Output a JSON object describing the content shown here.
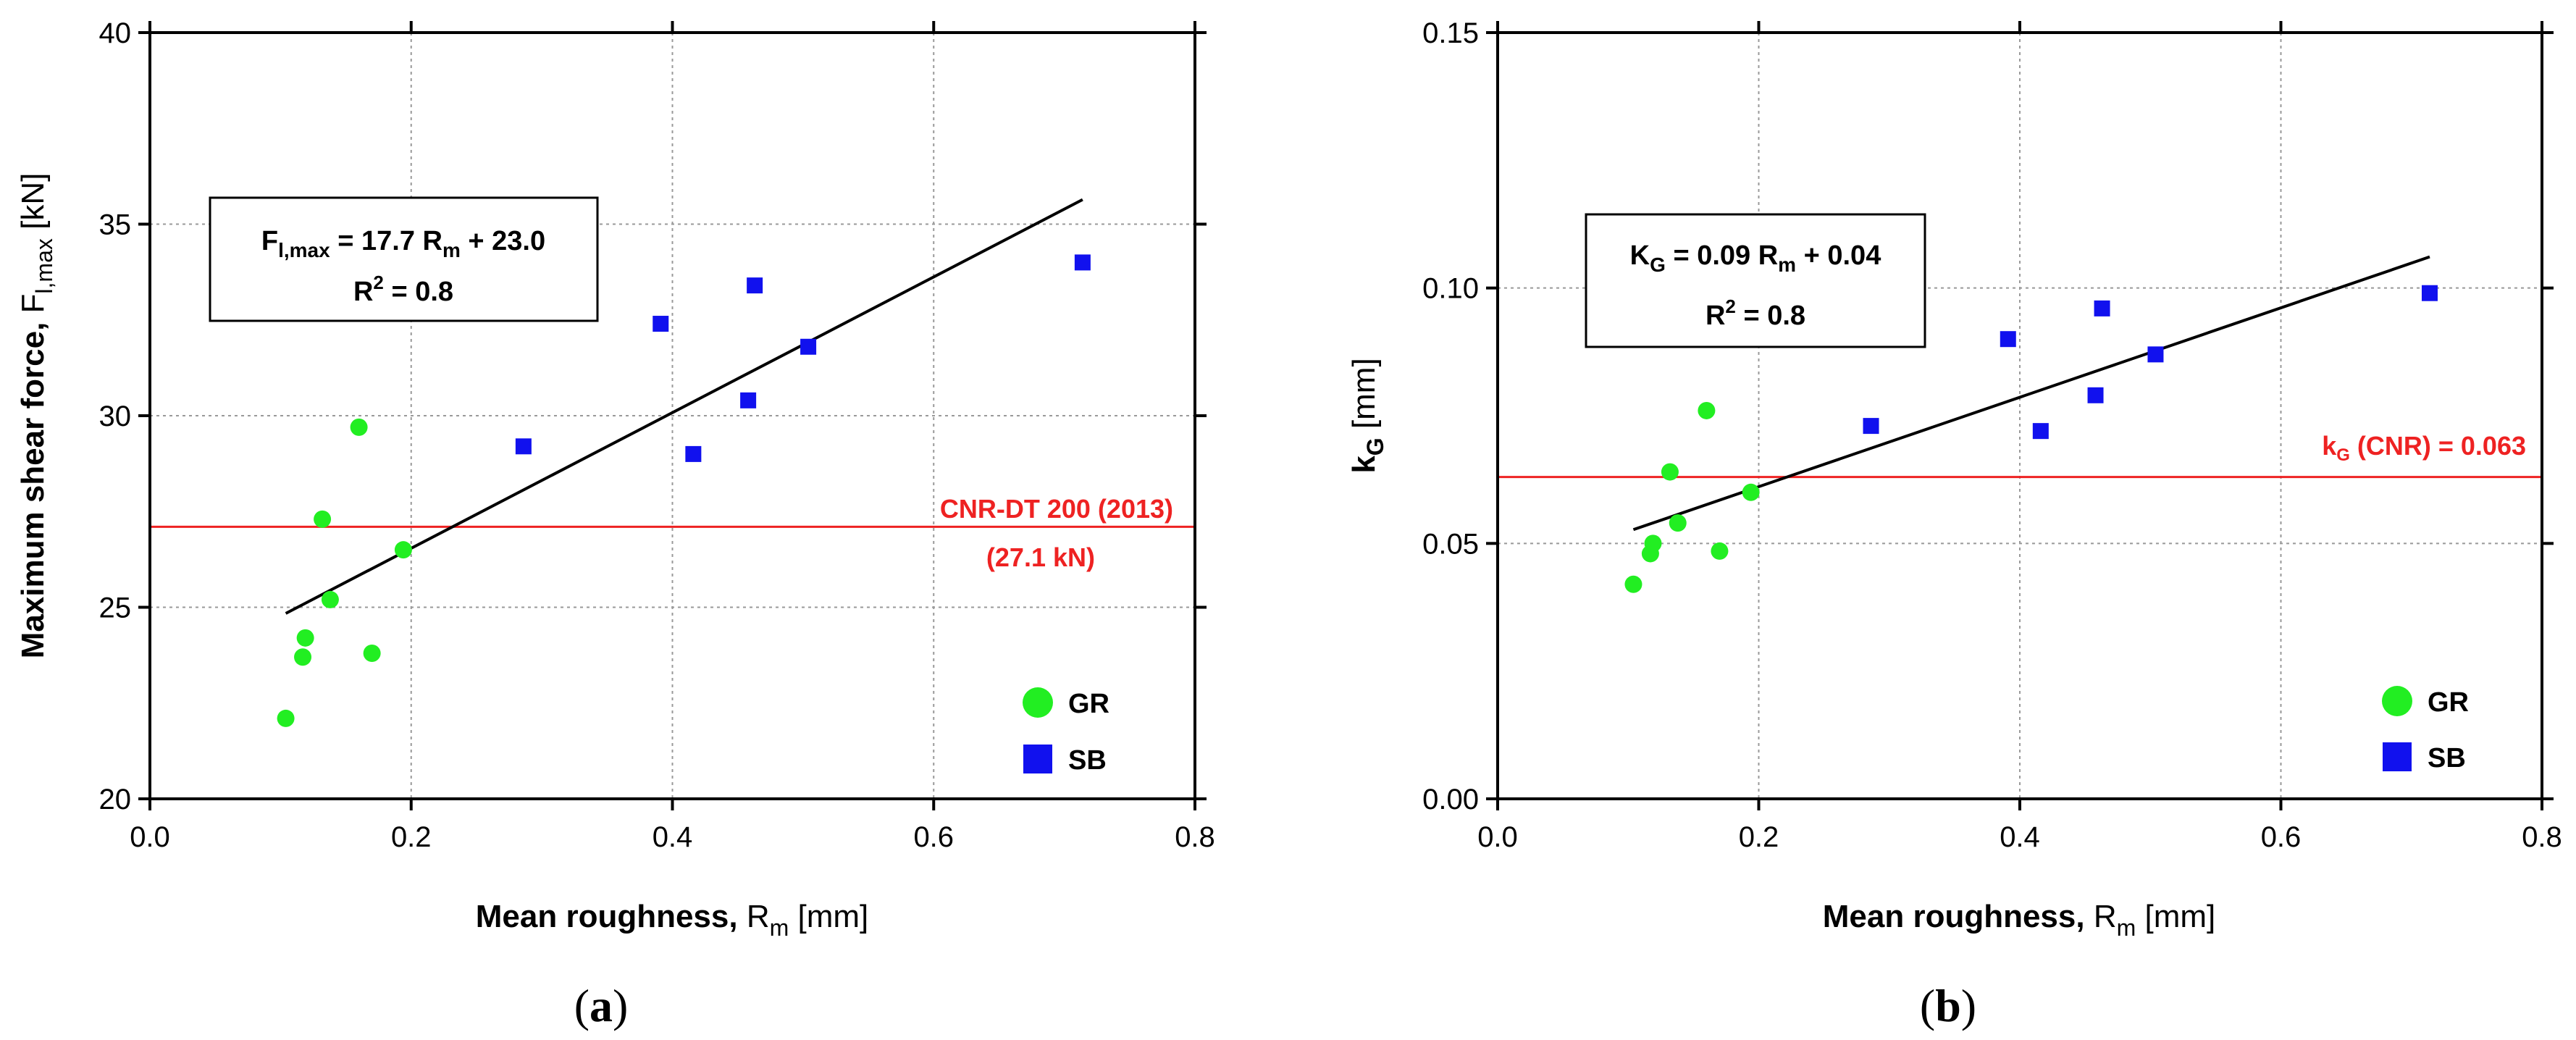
{
  "colors": {
    "gr": "#22ee22",
    "sb": "#1111ee",
    "ref": "#ee2222",
    "fit": "#000000",
    "grid": "#999999"
  },
  "chart_data": [
    {
      "type": "scatter",
      "panel_label": "(a)",
      "xlabel": "Mean roughness, R",
      "xlabel_sub": "m",
      "xlabel_unit": " [mm]",
      "ylabel": "Maximum shear force, F",
      "ylabel_sub": "l,max",
      "ylabel_unit": " [kN]",
      "xlim": [
        0.0,
        0.8
      ],
      "ylim": [
        20,
        40
      ],
      "xticks": [
        0.0,
        0.2,
        0.4,
        0.6,
        0.8
      ],
      "xtick_labels": [
        "0.0",
        "0.2",
        "0.4",
        "0.6",
        "0.8"
      ],
      "yticks": [
        20,
        25,
        30,
        35,
        40
      ],
      "ytick_labels": [
        "20",
        "25",
        "30",
        "35",
        "40"
      ],
      "grid": true,
      "series": [
        {
          "name": "GR",
          "marker": "circle",
          "color": "#22ee22",
          "x": [
            0.104,
            0.117,
            0.119,
            0.132,
            0.138,
            0.16,
            0.17,
            0.194
          ],
          "y": [
            22.1,
            23.7,
            24.2,
            27.3,
            25.2,
            29.7,
            23.8,
            26.5
          ]
        },
        {
          "name": "SB",
          "marker": "square",
          "color": "#1111ee",
          "x": [
            0.286,
            0.391,
            0.416,
            0.458,
            0.463,
            0.504,
            0.714
          ],
          "y": [
            29.2,
            32.4,
            29.0,
            30.4,
            33.4,
            31.8,
            34.0
          ]
        }
      ],
      "fit": {
        "x": [
          0.104,
          0.714
        ],
        "y": [
          24.84,
          35.64
        ]
      },
      "equation": {
        "line1": {
          "lhs": "F",
          "lhs_sub": "l,max",
          "mid": " = 17.7 R",
          "mid_sub": "m",
          "rhs": " + 23.0"
        },
        "line2": {
          "pre": "R",
          "sup": "2",
          "post": " = 0.8"
        }
      },
      "reference": {
        "value": 27.1,
        "label_line1": "CNR-DT 200 (2013)",
        "label_line2": "(27.1 kN)"
      },
      "legend": [
        "GR",
        "SB"
      ]
    },
    {
      "type": "scatter",
      "panel_label": "(b)",
      "xlabel": "Mean roughness, R",
      "xlabel_sub": "m",
      "xlabel_unit": " [mm]",
      "ylabel": "k",
      "ylabel_sub": "G",
      "ylabel_unit": " [mm]",
      "xlim": [
        0.0,
        0.8
      ],
      "ylim": [
        0.0,
        0.15
      ],
      "xticks": [
        0.0,
        0.2,
        0.4,
        0.6,
        0.8
      ],
      "xtick_labels": [
        "0.0",
        "0.2",
        "0.4",
        "0.6",
        "0.8"
      ],
      "yticks": [
        0.0,
        0.05,
        0.1,
        0.15
      ],
      "ytick_labels": [
        "0.00",
        "0.05",
        "0.10",
        "0.15"
      ],
      "grid": true,
      "series": [
        {
          "name": "GR",
          "marker": "circle",
          "color": "#22ee22",
          "x": [
            0.104,
            0.117,
            0.119,
            0.132,
            0.138,
            0.16,
            0.17,
            0.194
          ],
          "y": [
            0.042,
            0.048,
            0.05,
            0.064,
            0.054,
            0.076,
            0.0485,
            0.06
          ]
        },
        {
          "name": "SB",
          "marker": "square",
          "color": "#1111ee",
          "x": [
            0.286,
            0.391,
            0.416,
            0.458,
            0.463,
            0.504,
            0.714
          ],
          "y": [
            0.073,
            0.09,
            0.072,
            0.079,
            0.096,
            0.087,
            0.099
          ]
        }
      ],
      "fit": {
        "x": [
          0.104,
          0.714
        ],
        "y": [
          0.0527,
          0.1061
        ]
      },
      "equation": {
        "line1": {
          "lhs": "K",
          "lhs_sub": "G",
          "mid": " = 0.09 R",
          "mid_sub": "m",
          "rhs": " + 0.04"
        },
        "line2": {
          "pre": "R",
          "sup": "2",
          "post": " = 0.8"
        }
      },
      "reference": {
        "value": 0.063,
        "label_pre": "k",
        "label_sub": "G",
        "label_post": " (CNR) = 0.063"
      },
      "legend": [
        "GR",
        "SB"
      ]
    }
  ]
}
